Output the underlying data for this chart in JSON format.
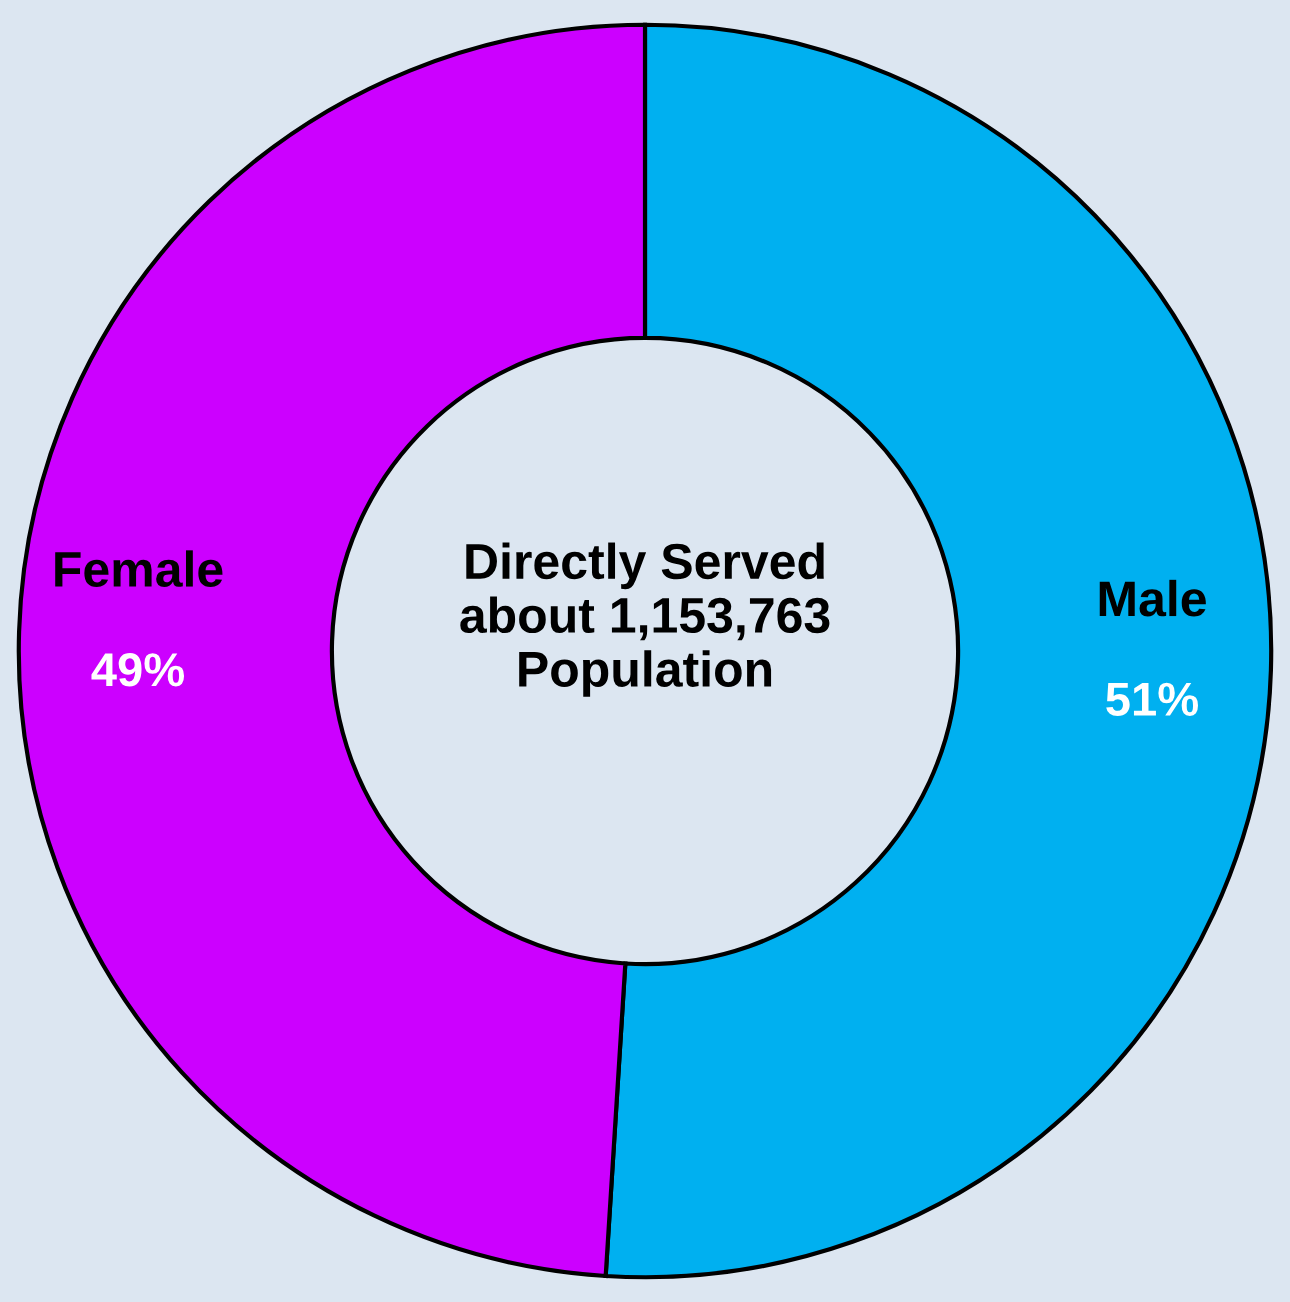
{
  "chart_data": {
    "type": "donut",
    "categories": [
      "Male",
      "Female"
    ],
    "values": [
      51,
      49
    ],
    "colors": [
      "#00b0f0",
      "#cc00ff"
    ],
    "value_labels": [
      "51%",
      "49%"
    ],
    "annotations": [
      "Directly Served\nabout 1,153,763\nPopulation"
    ],
    "legend": false
  }
}
